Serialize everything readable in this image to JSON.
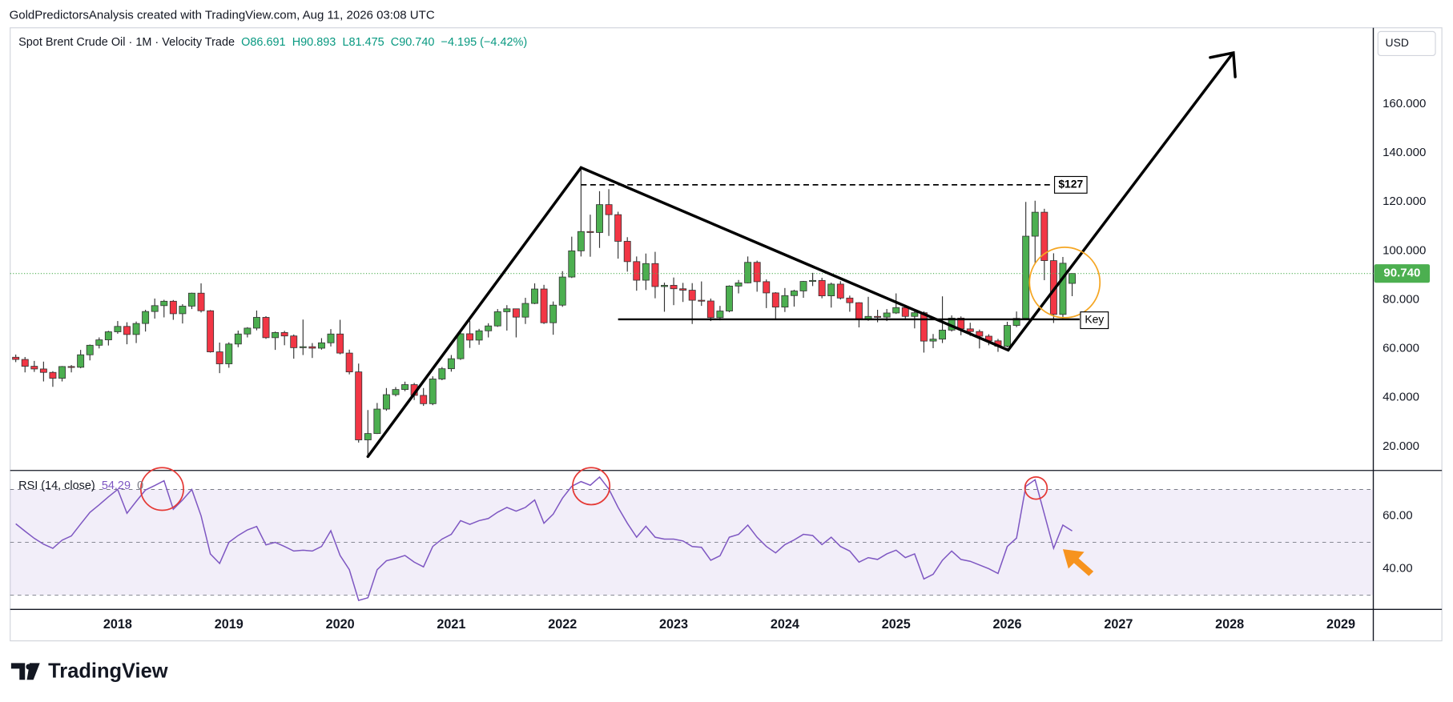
{
  "header": {
    "attribution": "GoldPredictorsAnalysis created with TradingView.com, Aug 11, 2026 03:08 UTC",
    "symbol": "Spot Brent Crude Oil · 1M · Velocity Trade",
    "open": "O86.691",
    "high": "H90.893",
    "low": "L81.475",
    "close": "C90.740",
    "change": "−4.195 (−4.42%)",
    "currency": "USD",
    "logo": "TradingView"
  },
  "chart_data": [
    {
      "type": "candlestick",
      "x": [
        "2017-02",
        "2017-03",
        "2017-04",
        "2017-05",
        "2017-06",
        "2017-07",
        "2017-08",
        "2017-09",
        "2017-10",
        "2017-11",
        "2017-12",
        "2018-01",
        "2018-02",
        "2018-03",
        "2018-04",
        "2018-05",
        "2018-06",
        "2018-07",
        "2018-08",
        "2018-09",
        "2018-10",
        "2018-11",
        "2018-12",
        "2019-01",
        "2019-02",
        "2019-03",
        "2019-04",
        "2019-05",
        "2019-06",
        "2019-07",
        "2019-08",
        "2019-09",
        "2019-10",
        "2019-11",
        "2019-12",
        "2020-01",
        "2020-02",
        "2020-03",
        "2020-04",
        "2020-05",
        "2020-06",
        "2020-07",
        "2020-08",
        "2020-09",
        "2020-10",
        "2020-11",
        "2020-12",
        "2021-01",
        "2021-02",
        "2021-03",
        "2021-04",
        "2021-05",
        "2021-06",
        "2021-07",
        "2021-08",
        "2021-09",
        "2021-10",
        "2021-11",
        "2021-12",
        "2022-01",
        "2022-02",
        "2022-03",
        "2022-04",
        "2022-05",
        "2022-06",
        "2022-07",
        "2022-08",
        "2022-09",
        "2022-10",
        "2022-11",
        "2022-12",
        "2023-01",
        "2023-02",
        "2023-03",
        "2023-04",
        "2023-05",
        "2023-06",
        "2023-07",
        "2023-08",
        "2023-09",
        "2023-10",
        "2023-11",
        "2023-12",
        "2024-01",
        "2024-02",
        "2024-03",
        "2024-04",
        "2024-05",
        "2024-06",
        "2024-07",
        "2024-08",
        "2024-09",
        "2024-10",
        "2024-11",
        "2024-12",
        "2025-01",
        "2025-02",
        "2025-03",
        "2025-04",
        "2025-05",
        "2025-06",
        "2025-07",
        "2025-08",
        "2025-09",
        "2025-10",
        "2025-11",
        "2025-12",
        "2026-01",
        "2026-02",
        "2026-03",
        "2026-04",
        "2026-05",
        "2026-06",
        "2026-07",
        "2026-08"
      ],
      "open": [
        56.5,
        55.6,
        52.8,
        51.7,
        50.3,
        47.9,
        52.7,
        52.4,
        57.5,
        61.4,
        63.6,
        66.9,
        69.1,
        65.8,
        70.3,
        75.2,
        77.6,
        79.4,
        74.3,
        77.4,
        82.7,
        75.5,
        58.7,
        53.8,
        61.9,
        66.0,
        68.4,
        72.8,
        64.5,
        66.6,
        65.2,
        60.4,
        60.8,
        60.2,
        62.4,
        66.0,
        58.2,
        50.5,
        22.7,
        25.3,
        35.3,
        41.2,
        43.3,
        45.3,
        40.9,
        37.5,
        47.6,
        51.8,
        55.9,
        66.1,
        63.5,
        67.3,
        69.3,
        75.1,
        76.3,
        72.9,
        78.5,
        84.4,
        70.6,
        77.8,
        89.3,
        100.0,
        107.9,
        107.5,
        118.9,
        114.8,
        103.9,
        95.6,
        88.0,
        94.8,
        85.4,
        85.9,
        84.5,
        83.9,
        79.8,
        79.5,
        72.7,
        75.4,
        85.6,
        86.9,
        95.3,
        87.4,
        82.8,
        77.0,
        81.7,
        83.6,
        87.5,
        87.9,
        81.6,
        86.4,
        80.7,
        78.8,
        71.8,
        73.2,
        72.9,
        74.6,
        76.8,
        73.2,
        74.7,
        63.1,
        63.9,
        67.6,
        72.5,
        68.1,
        67.0,
        65.1,
        63.2,
        61.0,
        69.5,
        72.4,
        106.0,
        115.8,
        96.0,
        74.0,
        86.691
      ],
      "high": [
        57.6,
        56.6,
        55.0,
        54.7,
        50.8,
        52.9,
        53.3,
        59.5,
        61.7,
        64.6,
        67.3,
        71.3,
        70.8,
        71.1,
        75.9,
        80.5,
        80.0,
        79.9,
        78.2,
        82.9,
        86.7,
        75.8,
        62.5,
        62.6,
        67.4,
        68.8,
        75.6,
        73.3,
        67.0,
        67.3,
        65.8,
        71.9,
        62.3,
        64.3,
        68.0,
        71.8,
        59.6,
        53.9,
        34.9,
        37.8,
        43.9,
        44.3,
        46.5,
        46.0,
        43.9,
        48.7,
        52.5,
        57.4,
        67.7,
        71.4,
        68.1,
        70.4,
        76.2,
        77.8,
        76.4,
        80.8,
        86.7,
        86.1,
        79.3,
        91.7,
        105.8,
        133.5,
        114.8,
        124.4,
        125.2,
        116.0,
        105.6,
        97.7,
        98.9,
        99.6,
        87.0,
        89.1,
        86.9,
        86.8,
        87.5,
        80.5,
        77.5,
        85.9,
        88.1,
        97.7,
        96.0,
        88.3,
        83.1,
        84.8,
        84.1,
        87.7,
        91.0,
        89.0,
        87.0,
        87.6,
        81.7,
        79.0,
        81.2,
        75.9,
        76.2,
        82.6,
        77.4,
        75.3,
        75.3,
        66.0,
        81.4,
        73.6,
        73.2,
        70.6,
        67.8,
        65.9,
        64.0,
        71.0,
        75.2,
        120.0,
        120.5,
        117.2,
        99.0,
        97.5,
        90.893
      ],
      "low": [
        54.5,
        50.3,
        50.5,
        46.6,
        44.4,
        46.6,
        50.3,
        52.0,
        55.2,
        60.1,
        61.3,
        66.1,
        61.8,
        62.3,
        67.0,
        72.3,
        72.8,
        71.8,
        70.3,
        76.2,
        74.8,
        58.4,
        50.0,
        52.2,
        60.6,
        64.6,
        67.5,
        64.0,
        59.5,
        61.4,
        55.9,
        57.4,
        56.2,
        59.6,
        60.9,
        57.7,
        49.5,
        21.6,
        16.0,
        25.1,
        34.6,
        40.5,
        42.6,
        39.0,
        36.6,
        36.9,
        47.1,
        50.6,
        55.4,
        60.3,
        61.6,
        64.6,
        68.9,
        67.4,
        64.6,
        70.1,
        78.2,
        70.1,
        65.7,
        77.1,
        88.9,
        97.7,
        97.6,
        101.2,
        106.1,
        96.8,
        91.5,
        83.7,
        84.0,
        80.6,
        75.1,
        77.8,
        79.1,
        70.1,
        77.5,
        71.3,
        71.6,
        74.9,
        82.6,
        86.7,
        83.3,
        76.6,
        72.3,
        75.0,
        77.2,
        80.8,
        85.6,
        80.6,
        76.8,
        80.1,
        75.1,
        68.7,
        71.4,
        70.8,
        71.3,
        74.2,
        72.3,
        68.3,
        58.4,
        60.2,
        62.3,
        67.0,
        65.5,
        65.2,
        60.1,
        61.4,
        58.7,
        60.5,
        68.8,
        72.0,
        95.0,
        88.0,
        70.5,
        72.3,
        81.475
      ],
      "close": [
        55.6,
        52.8,
        51.7,
        50.3,
        47.9,
        52.7,
        52.4,
        57.5,
        61.4,
        63.6,
        66.9,
        69.1,
        65.8,
        70.3,
        75.2,
        77.6,
        79.4,
        74.3,
        77.4,
        82.7,
        75.5,
        58.7,
        53.8,
        61.9,
        66.0,
        68.4,
        72.8,
        64.5,
        66.6,
        65.2,
        60.4,
        60.8,
        60.2,
        62.4,
        66.0,
        58.2,
        50.5,
        22.7,
        25.3,
        35.3,
        41.2,
        43.3,
        45.3,
        40.9,
        37.5,
        47.6,
        51.8,
        55.9,
        66.1,
        63.5,
        67.3,
        69.3,
        75.1,
        76.3,
        72.9,
        78.5,
        84.4,
        70.6,
        77.8,
        89.3,
        100.0,
        107.9,
        107.5,
        118.9,
        114.8,
        103.9,
        95.6,
        88.0,
        94.8,
        85.4,
        85.9,
        84.5,
        83.9,
        79.8,
        79.5,
        72.7,
        75.4,
        85.6,
        86.9,
        95.3,
        87.4,
        82.8,
        77.0,
        81.7,
        83.6,
        87.5,
        87.9,
        81.6,
        86.4,
        80.7,
        78.8,
        71.8,
        73.2,
        72.9,
        74.6,
        76.8,
        73.2,
        74.7,
        63.1,
        63.9,
        67.6,
        72.5,
        68.1,
        67.0,
        65.1,
        63.2,
        61.0,
        69.5,
        72.4,
        106.0,
        115.8,
        96.0,
        74.0,
        94.935,
        90.74
      ],
      "up_color": "#4caf50",
      "down_color": "#f23645",
      "last_price_color": "#4caf50",
      "close_label": "90.740",
      "xlim": [
        "2017-01",
        "2029-05"
      ],
      "xticks": [
        "2018",
        "2019",
        "2020",
        "2021",
        "2022",
        "2023",
        "2024",
        "2025",
        "2026",
        "2027",
        "2028",
        "2029"
      ],
      "ylim": [
        10.2,
        191.2
      ],
      "yticks": [
        {
          "value": 20,
          "label": "20.000"
        },
        {
          "value": 40,
          "label": "40.000"
        },
        {
          "value": 60,
          "label": "60.000"
        },
        {
          "value": 80,
          "label": "80.000"
        },
        {
          "value": 100,
          "label": "100.000"
        },
        {
          "value": 120,
          "label": "120.000"
        },
        {
          "value": 140,
          "label": "140.000"
        },
        {
          "value": 160,
          "label": "160.000"
        }
      ],
      "grid": false,
      "annotations": [
        {
          "label": "$127",
          "value": 127
        },
        {
          "label": "Key",
          "value": 72
        }
      ]
    },
    {
      "type": "line",
      "title": "RSI (14, close)",
      "value_label": "54.29",
      "extra_label": "0",
      "color": "#7e57c2",
      "values": [
        57.0,
        54.2,
        51.5,
        49.3,
        47.7,
        50.8,
        52.4,
        56.9,
        61.3,
        64.2,
        67.2,
        70.0,
        61.0,
        65.5,
        69.8,
        71.5,
        73.3,
        62.5,
        66.0,
        70.0,
        60.0,
        45.6,
        42.0,
        50.0,
        52.6,
        54.7,
        56.0,
        49.0,
        50.0,
        48.4,
        46.7,
        47.0,
        46.7,
        48.4,
        54.4,
        45.0,
        39.6,
        28.0,
        29.0,
        39.6,
        43.0,
        43.9,
        45.0,
        42.5,
        40.7,
        48.4,
        51.2,
        53.0,
        58.2,
        56.8,
        58.2,
        59.0,
        61.4,
        63.2,
        61.8,
        63.2,
        66.0,
        57.2,
        60.7,
        66.7,
        71.2,
        73.0,
        71.6,
        74.7,
        70.2,
        63.2,
        57.2,
        51.9,
        56.1,
        51.9,
        51.2,
        51.2,
        50.5,
        48.4,
        48.1,
        43.2,
        44.9,
        51.9,
        53.0,
        56.5,
        51.9,
        48.4,
        46.0,
        49.1,
        50.9,
        53.0,
        52.6,
        49.1,
        51.9,
        48.4,
        46.7,
        42.5,
        44.2,
        43.5,
        45.6,
        47.0,
        44.2,
        45.6,
        36.1,
        37.9,
        43.2,
        46.7,
        43.5,
        42.8,
        41.4,
        40.0,
        38.2,
        48.4,
        51.6,
        71.2,
        73.7,
        60.7,
        47.7,
        56.5,
        54.29
      ],
      "ylim": [
        24.6,
        77.2
      ],
      "yticks": [
        {
          "value": 40,
          "label": "40.00"
        },
        {
          "value": 60,
          "label": "60.00"
        }
      ],
      "levels": [
        30,
        50,
        70
      ]
    }
  ]
}
